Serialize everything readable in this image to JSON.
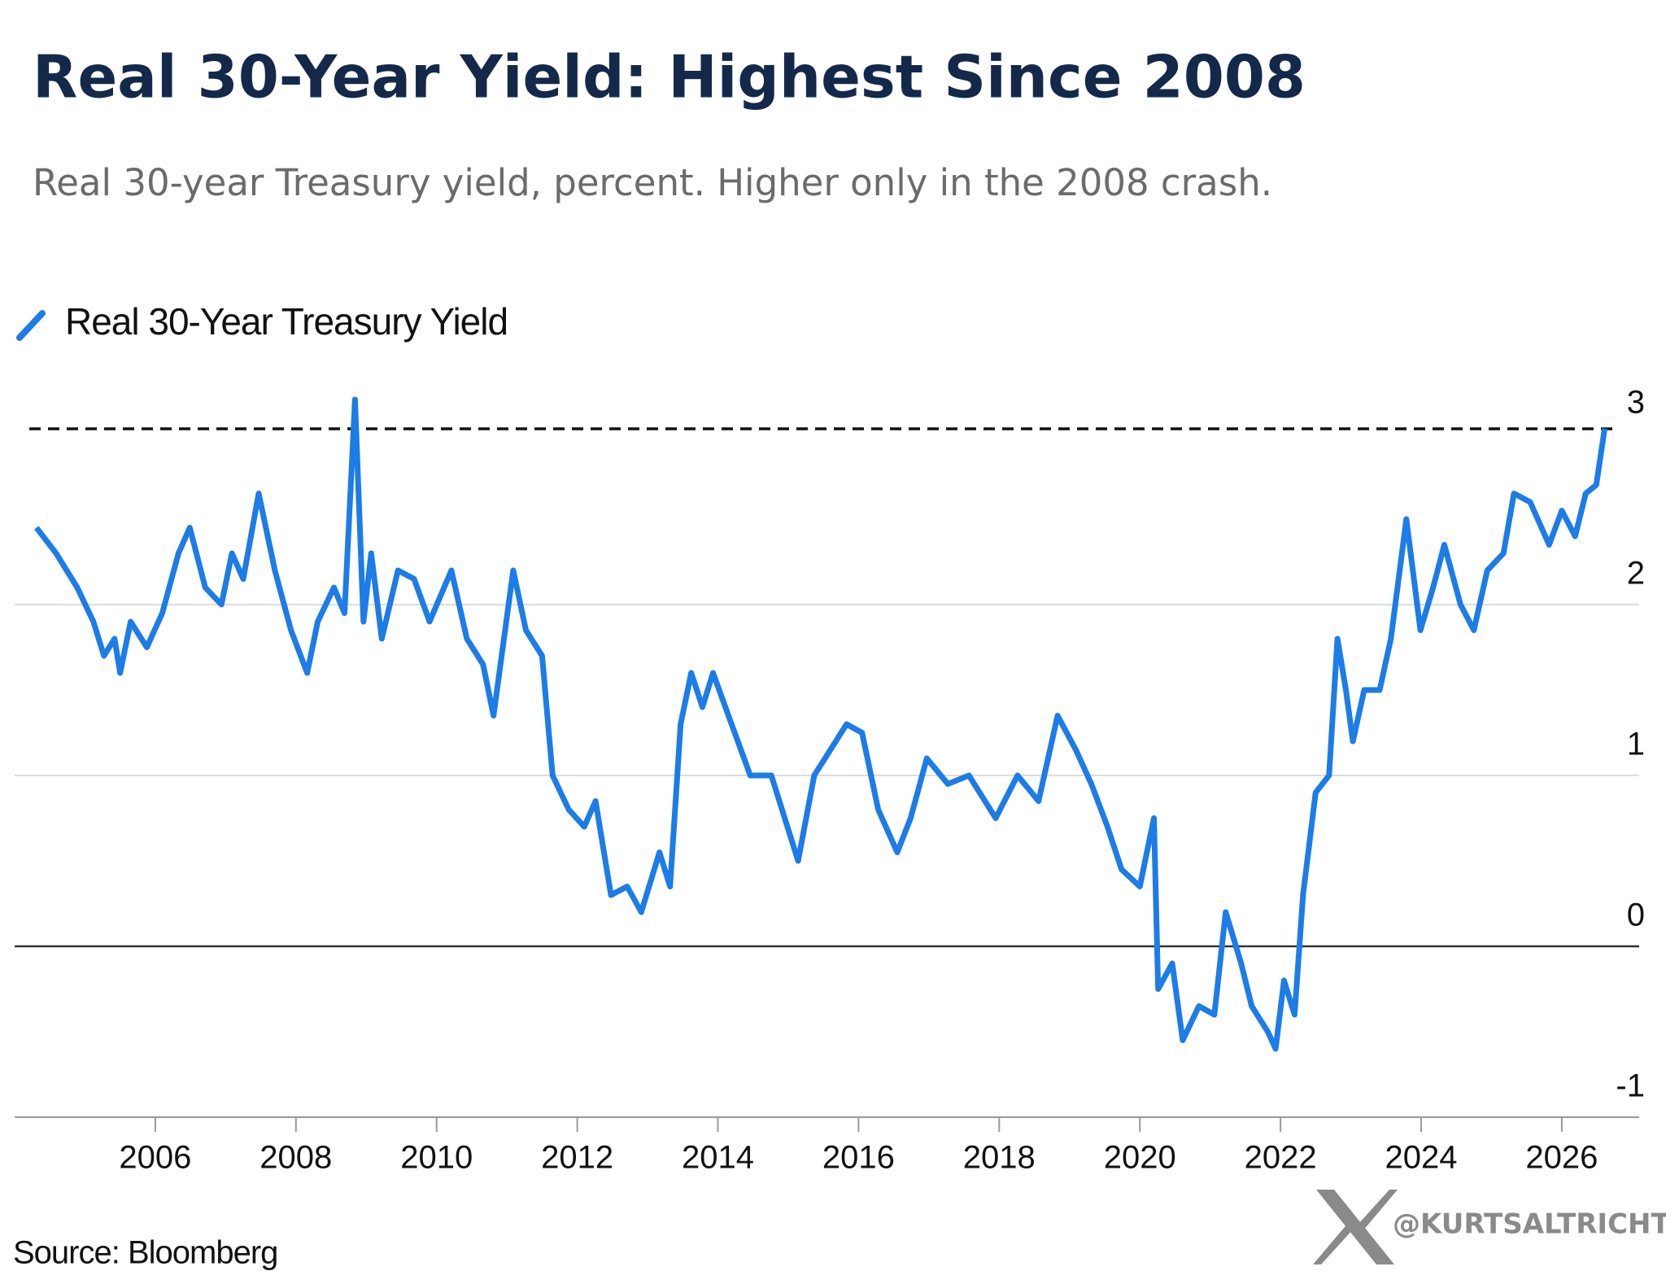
{
  "chart_data": {
    "type": "line",
    "title": "Real 30-Year Yield: Highest Since 2008",
    "subtitle": "Real 30-year Treasury yield, percent. Higher only in the 2008 crash.",
    "source": "Source: Bloomberg",
    "watermark": "@KURTSALTRICHTER",
    "legend": "top-left",
    "grid": true,
    "reference_line": 3,
    "xlim": [
      2004,
      2027.1
    ],
    "xticks": [
      2006,
      2008,
      2010,
      2012,
      2014,
      2016,
      2018,
      2020,
      2022,
      2024,
      2026
    ],
    "ylim": [
      -1,
      3.3
    ],
    "yticks": [
      -1,
      0,
      1,
      2,
      3
    ],
    "x": [
      2004.31,
      2004.59,
      2004.89,
      2005.12,
      2005.27,
      2005.42,
      2005.5,
      2005.65,
      2005.88,
      2006.1,
      2006.33,
      2006.49,
      2006.71,
      2006.94,
      2007.09,
      2007.25,
      2007.47,
      2007.7,
      2007.93,
      2008.16,
      2008.31,
      2008.54,
      2008.69,
      2008.84,
      2008.96,
      2009.07,
      2009.22,
      2009.45,
      2009.68,
      2009.9,
      2010.21,
      2010.43,
      2010.66,
      2010.81,
      2011.09,
      2011.27,
      2011.5,
      2011.65,
      2011.88,
      2012.1,
      2012.26,
      2012.48,
      2012.71,
      2012.91,
      2013.17,
      2013.32,
      2013.47,
      2013.62,
      2013.78,
      2013.93,
      2014.15,
      2014.46,
      2014.76,
      2015.14,
      2015.37,
      2015.6,
      2015.83,
      2016.05,
      2016.28,
      2016.55,
      2016.74,
      2016.97,
      2017.27,
      2017.57,
      2017.95,
      2018.26,
      2018.56,
      2018.83,
      2019.09,
      2019.31,
      2019.54,
      2019.74,
      2020.0,
      2020.2,
      2020.26,
      2020.46,
      2020.61,
      2020.84,
      2021.06,
      2021.22,
      2021.44,
      2021.59,
      2021.82,
      2021.93,
      2022.05,
      2022.2,
      2022.32,
      2022.5,
      2022.69,
      2022.81,
      2022.93,
      2023.03,
      2023.19,
      2023.41,
      2023.57,
      2023.79,
      2023.99,
      2024.17,
      2024.33,
      2024.56,
      2024.75,
      2024.94,
      2025.17,
      2025.32,
      2025.55,
      2025.82,
      2026.0,
      2026.19,
      2026.34,
      2026.49,
      2026.61
    ],
    "series": [
      {
        "name": "Real 30-Year Treasury Yield",
        "color": "#1c7ce8",
        "values": [
          2.45,
          2.3,
          2.1,
          1.9,
          1.7,
          1.8,
          1.6,
          1.9,
          1.75,
          1.95,
          2.3,
          2.45,
          2.1,
          2.0,
          2.3,
          2.15,
          2.65,
          2.2,
          1.85,
          1.6,
          1.9,
          2.1,
          1.95,
          3.2,
          1.9,
          2.3,
          1.8,
          2.2,
          2.15,
          1.9,
          2.2,
          1.8,
          1.65,
          1.35,
          2.2,
          1.85,
          1.7,
          1.0,
          0.8,
          0.7,
          0.85,
          0.3,
          0.35,
          0.2,
          0.55,
          0.35,
          1.3,
          1.6,
          1.4,
          1.6,
          1.35,
          1.0,
          1.0,
          0.5,
          1.0,
          1.15,
          1.3,
          1.25,
          0.8,
          0.55,
          0.75,
          1.1,
          0.95,
          1.0,
          0.75,
          1.0,
          0.85,
          1.35,
          1.15,
          0.95,
          0.7,
          0.45,
          0.35,
          0.75,
          -0.25,
          -0.1,
          -0.55,
          -0.35,
          -0.4,
          0.2,
          -0.1,
          -0.35,
          -0.5,
          -0.6,
          -0.2,
          -0.4,
          0.3,
          0.9,
          1.0,
          1.8,
          1.5,
          1.2,
          1.5,
          1.5,
          1.8,
          2.5,
          1.85,
          2.1,
          2.35,
          2.0,
          1.85,
          2.2,
          2.3,
          2.65,
          2.6,
          2.35,
          2.55,
          2.4,
          2.65,
          2.7,
          3.03
        ]
      }
    ]
  }
}
